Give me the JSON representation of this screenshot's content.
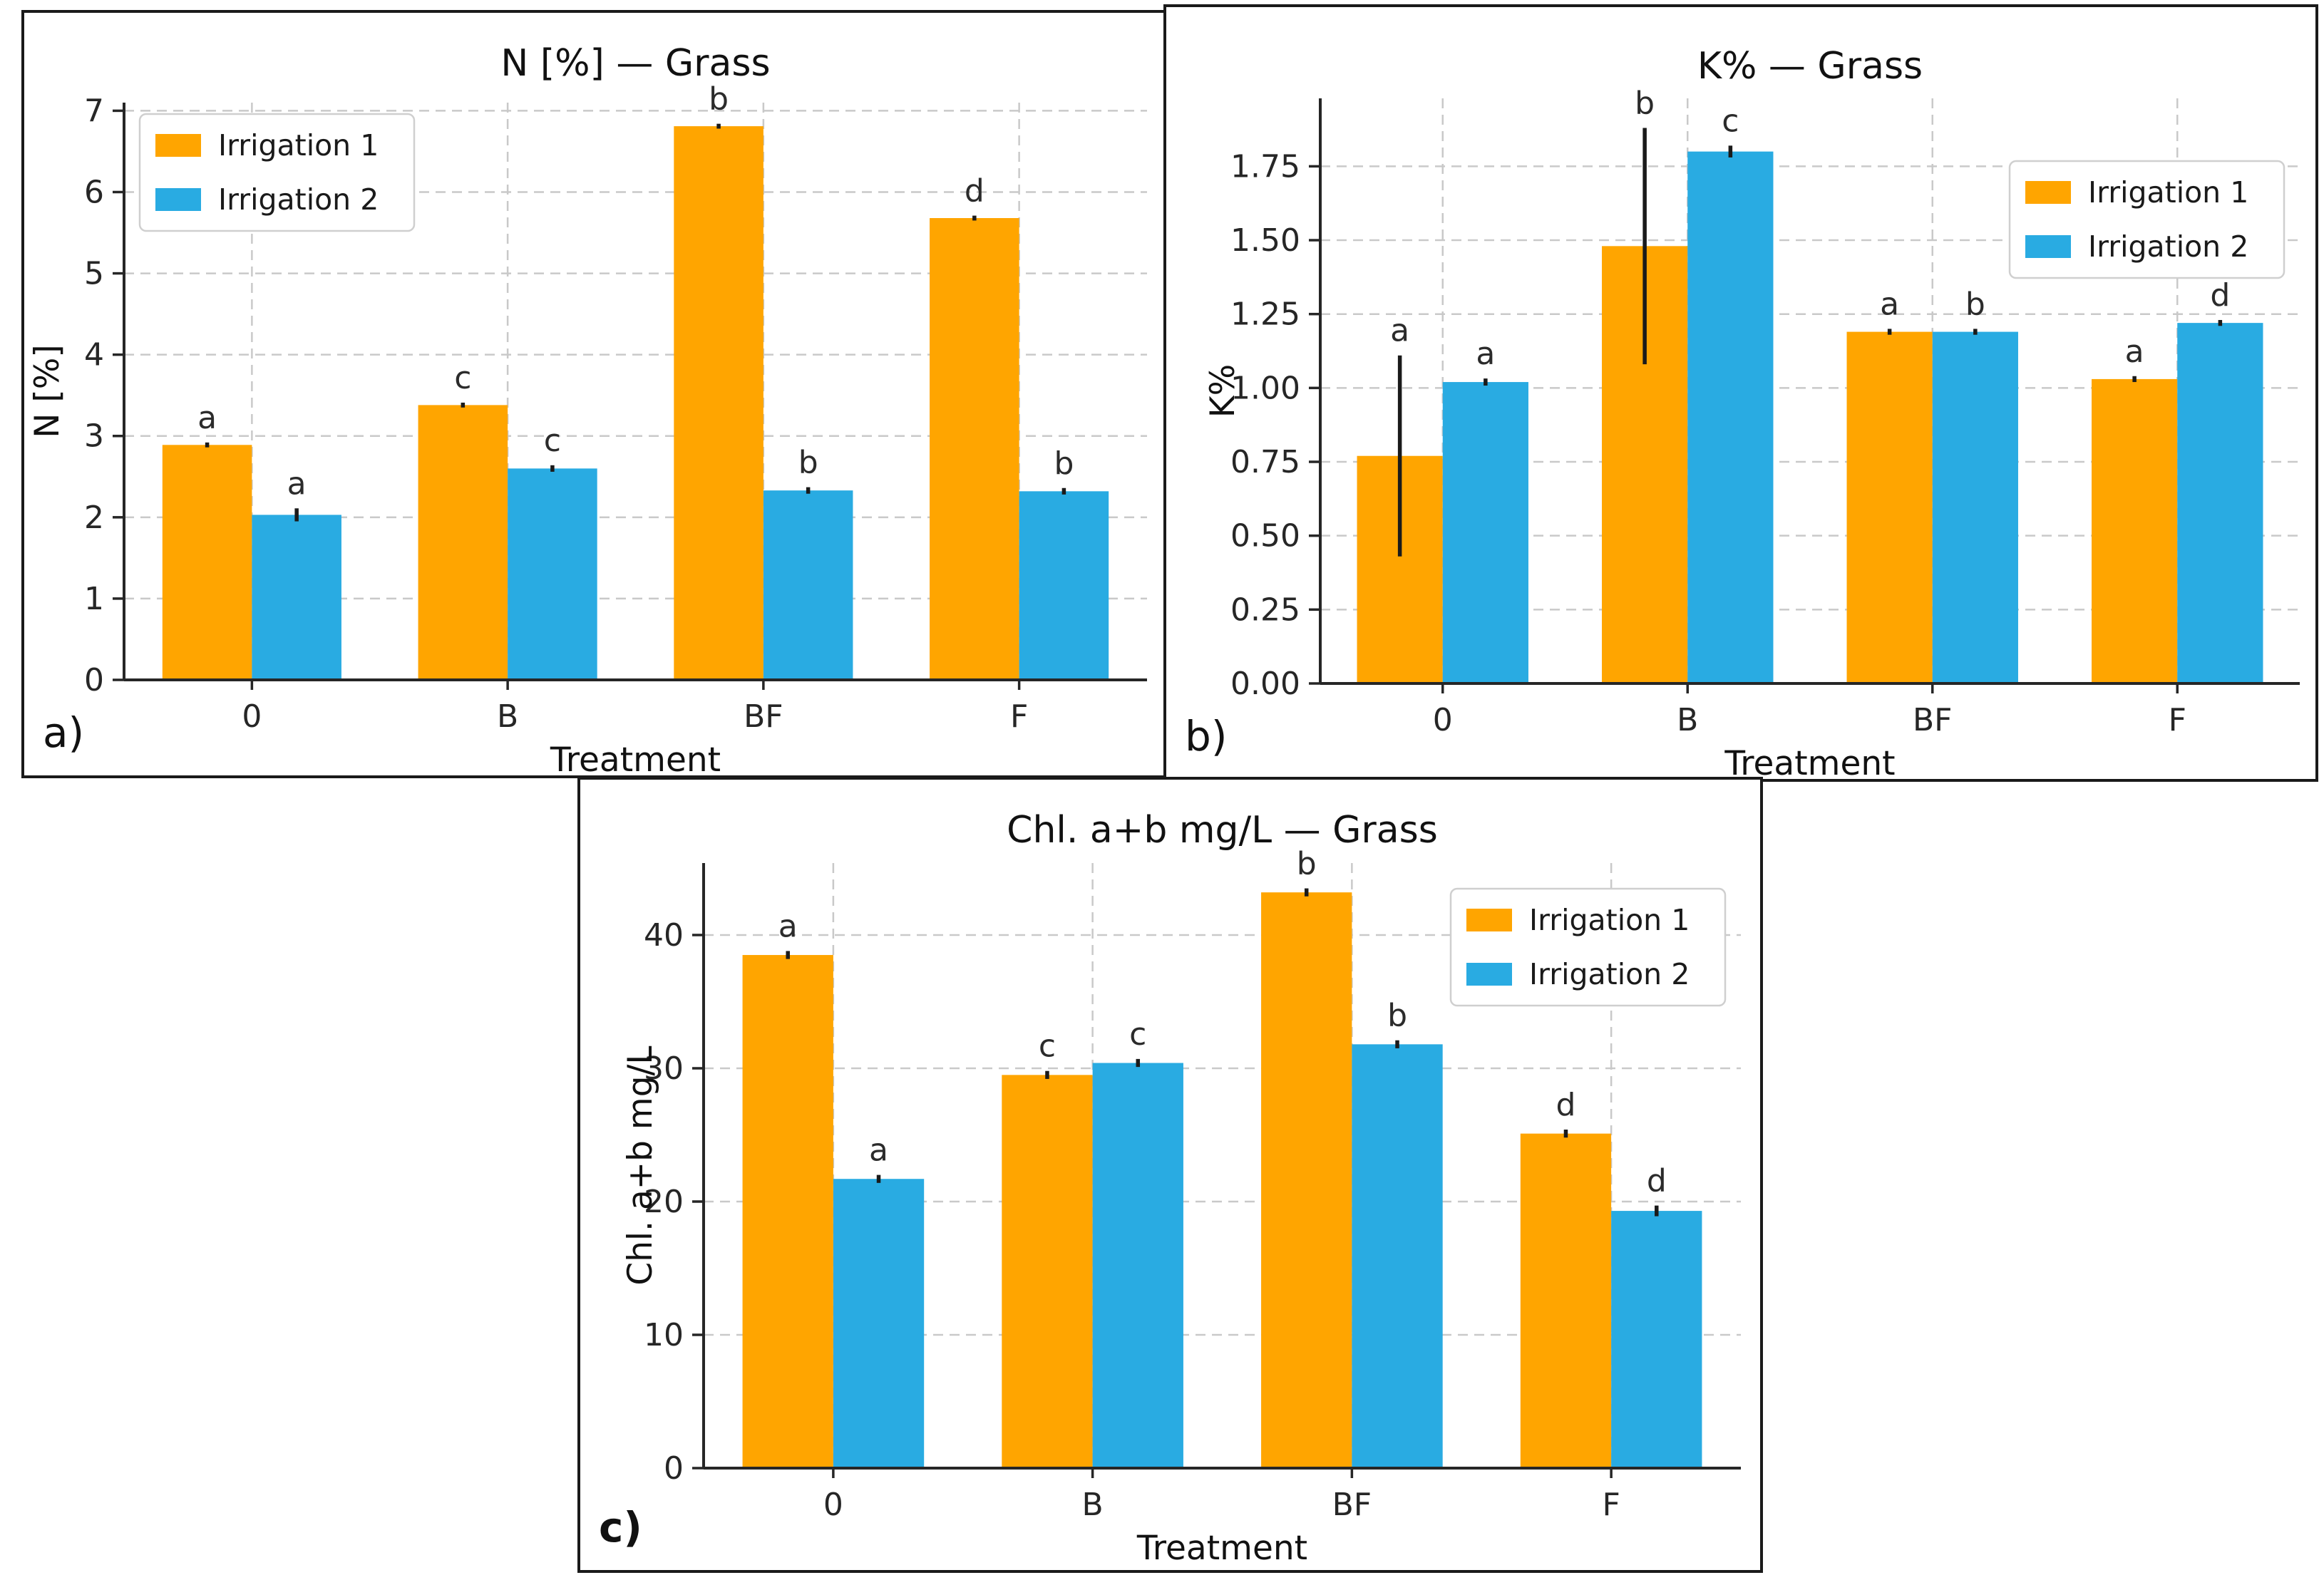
{
  "figure": {
    "background": "#ffffff",
    "border_color": "#1a1a1a",
    "grid_color": "#c9c9c9",
    "axis_color": "#262626",
    "error_bar_color": "#1a1a1a"
  },
  "chart_data": [
    {
      "id": "a",
      "type": "bar",
      "panel_label": "a)",
      "title": "N [%] — Grass",
      "xlabel": "Treatment",
      "ylabel": "N [%]",
      "categories": [
        "0",
        "B",
        "BF",
        "F"
      ],
      "ylim": [
        0,
        7.1
      ],
      "yticks": [
        0,
        1,
        2,
        3,
        4,
        5,
        6,
        7
      ],
      "ytick_decimals": 0,
      "grid": true,
      "legend_position": "top-left",
      "series": [
        {
          "name": "Irrigation 1",
          "color": "#FFA500",
          "values": [
            2.89,
            3.38,
            6.81,
            5.68
          ],
          "errors": [
            0.03,
            0.03,
            0.03,
            0.03
          ],
          "letters": [
            "a",
            "c",
            "b",
            "d"
          ]
        },
        {
          "name": "Irrigation 2",
          "color": "#29ABE2",
          "values": [
            2.03,
            2.6,
            2.33,
            2.32
          ],
          "errors": [
            0.08,
            0.04,
            0.04,
            0.04
          ],
          "letters": [
            "a",
            "c",
            "b",
            "b"
          ]
        }
      ]
    },
    {
      "id": "b",
      "type": "bar",
      "panel_label": "b)",
      "title": "K% — Grass",
      "xlabel": "Treatment",
      "ylabel": "K%",
      "categories": [
        "0",
        "B",
        "BF",
        "F"
      ],
      "ylim": [
        0,
        1.98
      ],
      "yticks": [
        0,
        0.25,
        0.5,
        0.75,
        1.0,
        1.25,
        1.5,
        1.75
      ],
      "ytick_decimals": 2,
      "grid": true,
      "legend_position": "top-right",
      "series": [
        {
          "name": "Irrigation 1",
          "color": "#FFA500",
          "values": [
            0.77,
            1.48,
            1.19,
            1.03
          ],
          "errors": [
            0.34,
            0.4,
            0.01,
            0.01
          ],
          "letters": [
            "a",
            "b",
            "a",
            "a"
          ]
        },
        {
          "name": "Irrigation 2",
          "color": "#29ABE2",
          "values": [
            1.02,
            1.8,
            1.19,
            1.22
          ],
          "errors": [
            0.012,
            0.02,
            0.01,
            0.01
          ],
          "letters": [
            "a",
            "c",
            "b",
            "d"
          ]
        }
      ]
    },
    {
      "id": "c",
      "type": "bar",
      "panel_label": "c)",
      "title": "Chl. a+b mg/L — Grass",
      "xlabel": "Treatment",
      "ylabel": "Chl. a+b mg/L",
      "categories": [
        "0",
        "B",
        "BF",
        "F"
      ],
      "ylim": [
        0,
        45.4
      ],
      "yticks": [
        0,
        10,
        20,
        30,
        40
      ],
      "ytick_decimals": 0,
      "grid": true,
      "legend_position": "top-right",
      "series": [
        {
          "name": "Irrigation 1",
          "color": "#FFA500",
          "values": [
            38.5,
            29.5,
            43.2,
            25.1
          ],
          "errors": [
            0.3,
            0.3,
            0.3,
            0.3
          ],
          "letters": [
            "a",
            "c",
            "b",
            "d"
          ]
        },
        {
          "name": "Irrigation 2",
          "color": "#29ABE2",
          "values": [
            21.7,
            30.4,
            31.8,
            19.3
          ],
          "errors": [
            0.3,
            0.3,
            0.3,
            0.4
          ],
          "letters": [
            "a",
            "c",
            "b",
            "d"
          ]
        }
      ]
    }
  ]
}
